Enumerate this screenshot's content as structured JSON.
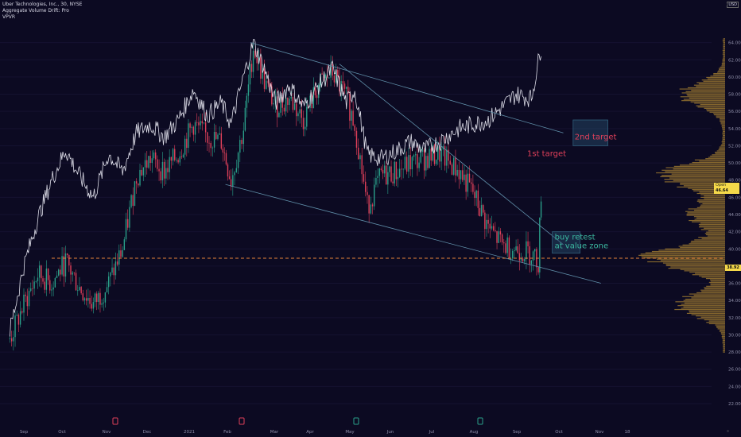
{
  "header": {
    "title": "Uber Technologies, Inc., 30, NYSE",
    "indicator_1": "Aggregate Volume Drift: Pro",
    "indicator_2": "VPVR"
  },
  "currency": "USD",
  "last_price": {
    "label": "Open",
    "value": "46.64"
  },
  "level_marker": "38.92",
  "colors": {
    "background": "#0c0a22",
    "candle_up": "#2aa08a",
    "candle_down": "#e0405a",
    "line": "#e8e8f2",
    "trendline": "#5f8ea8",
    "profile": "#8a6a2e",
    "level_line": "#e8843a",
    "target_text": "#e0405a",
    "retest_text": "#3bb8a0",
    "axis_text": "#8e8ea8",
    "grid": "#141230"
  },
  "annotations": {
    "second_target": "2nd target",
    "first_target": "1st target",
    "buy_retest_1": "buy retest",
    "buy_retest_2": "at value zone"
  },
  "chart_data": {
    "type": "line",
    "title": "Uber Technologies, Inc., 30, NYSE",
    "y_axis": {
      "min": 22,
      "max": 66,
      "ticks": [
        "64.00",
        "62.00",
        "60.00",
        "58.00",
        "56.00",
        "54.00",
        "52.00",
        "50.00",
        "48.00",
        "46.00",
        "44.00",
        "42.00",
        "40.00",
        "38.00",
        "36.00",
        "34.00",
        "32.00",
        "30.00",
        "28.00",
        "26.00",
        "24.00",
        "22.00"
      ]
    },
    "x_axis": {
      "ticks": [
        "Sep",
        "Oct",
        "Nov",
        "Dec",
        "2021",
        "Feb",
        "Mar",
        "Apr",
        "May",
        "Jun",
        "Jul",
        "Aug",
        "Sep",
        "Oct",
        "Nov",
        "18"
      ]
    },
    "price_series": {
      "name": "",
      "x": [
        "2020-08-26",
        "2020-09-05",
        "2020-09-15",
        "2020-09-25",
        "2020-10-05",
        "2020-10-15",
        "2020-10-25",
        "2020-11-05",
        "2020-11-15",
        "2020-11-25",
        "2020-12-05",
        "2020-12-15",
        "2020-12-25",
        "2021-01-05",
        "2021-01-15",
        "2021-01-25",
        "2021-02-01",
        "2021-02-10",
        "2021-02-17",
        "2021-02-25",
        "2021-03-05",
        "2021-03-15",
        "2021-03-25",
        "2021-04-05",
        "2021-04-15",
        "2021-04-25",
        "2021-05-01",
        "2021-05-10",
        "2021-05-20",
        "2021-06-01",
        "2021-06-10",
        "2021-06-20",
        "2021-07-01",
        "2021-07-15",
        "2021-07-25",
        "2021-08-05",
        "2021-08-15",
        "2021-08-25",
        "2021-09-05",
        "2021-09-12"
      ],
      "y": [
        30.5,
        38.0,
        43.5,
        48.0,
        51.5,
        48.5,
        46.0,
        51.0,
        49.0,
        53.5,
        54.5,
        53.0,
        55.0,
        58.5,
        55.5,
        57.0,
        54.5,
        60.0,
        64.0,
        61.0,
        57.0,
        59.0,
        56.5,
        59.0,
        61.0,
        57.0,
        58.5,
        51.0,
        50.5,
        51.5,
        52.5,
        51.5,
        52.5,
        54.0,
        54.5,
        55.0,
        56.5,
        58.0,
        57.5,
        63.5
      ]
    },
    "candle_series": {
      "x": [
        "2020-08-26",
        "2020-09-05",
        "2020-09-15",
        "2020-09-25",
        "2020-10-05",
        "2020-10-15",
        "2020-10-25",
        "2020-11-05",
        "2020-11-15",
        "2020-11-25",
        "2020-12-05",
        "2020-12-15",
        "2020-12-25",
        "2021-01-05",
        "2021-01-15",
        "2021-01-25",
        "2021-02-01",
        "2021-02-10",
        "2021-02-17",
        "2021-02-25",
        "2021-03-05",
        "2021-03-15",
        "2021-03-25",
        "2021-04-05",
        "2021-04-15",
        "2021-04-25",
        "2021-05-01",
        "2021-05-10",
        "2021-05-20",
        "2021-06-01",
        "2021-06-10",
        "2021-06-20",
        "2021-07-01",
        "2021-07-15",
        "2021-07-25",
        "2021-08-05",
        "2021-08-15",
        "2021-08-25",
        "2021-09-05",
        "2021-09-10",
        "2021-09-12"
      ],
      "y": [
        29.5,
        33.5,
        37.0,
        36.0,
        38.5,
        35.5,
        33.5,
        36.0,
        40.0,
        48.5,
        50.5,
        49.0,
        51.0,
        54.5,
        53.0,
        52.5,
        48.0,
        54.0,
        63.5,
        59.5,
        56.5,
        57.5,
        55.0,
        59.0,
        60.5,
        57.5,
        54.5,
        45.0,
        48.5,
        49.0,
        50.0,
        50.5,
        51.0,
        49.0,
        46.5,
        42.5,
        40.5,
        40.0,
        39.5,
        38.5,
        46.5
      ]
    },
    "trendlines": [
      {
        "from": [
          "2021-02-15",
          64.0
        ],
        "to": [
          "2021-09-28",
          53.5
        ]
      },
      {
        "from": [
          "2021-01-28",
          47.5
        ],
        "to": [
          "2021-10-25",
          36.0
        ]
      },
      {
        "from": [
          "2021-04-20",
          61.5
        ],
        "to": [
          "2021-09-28",
          40.5
        ]
      }
    ],
    "level": {
      "y": 38.92,
      "from": "2020-09-25",
      "to": "2021-11-25"
    },
    "boxes": [
      {
        "label": "2nd target",
        "x": [
          "2021-10-05",
          "2021-10-30"
        ],
        "y": [
          52.0,
          55.0
        ]
      },
      {
        "label": "buy retest at value zone",
        "x": [
          "2021-09-20",
          "2021-10-10"
        ],
        "y": [
          39.5,
          42.0
        ]
      }
    ],
    "volume_profile_peaks": [
      {
        "price": 39.0,
        "strength": 1.0
      },
      {
        "price": 48.5,
        "strength": 0.85
      },
      {
        "price": 58.0,
        "strength": 0.55
      },
      {
        "price": 33.5,
        "strength": 0.6
      },
      {
        "price": 44.0,
        "strength": 0.45
      }
    ]
  }
}
